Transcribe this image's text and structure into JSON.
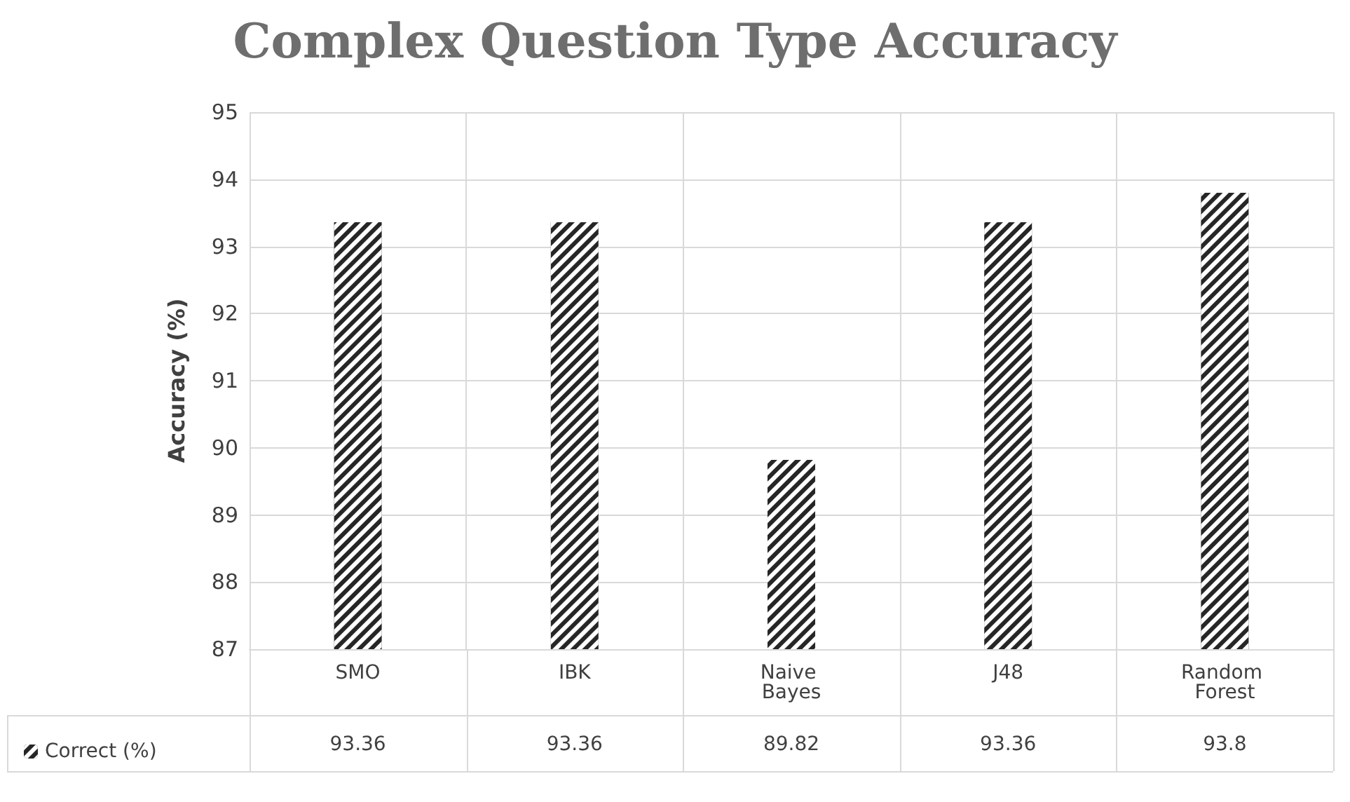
{
  "chart_data": {
    "type": "bar",
    "title": "Complex Question Type Accuracy",
    "ylabel": "Accuracy (%)",
    "categories": [
      "SMO",
      "IBK",
      "Naive Bayes",
      "J48",
      "Random Forest"
    ],
    "series": [
      {
        "name": "Correct (%)",
        "color": "#262626",
        "values": [
          93.36,
          93.36,
          89.82,
          93.36,
          93.8
        ]
      }
    ],
    "ylim": [
      87,
      95
    ],
    "yticks": [
      87,
      88,
      89,
      90,
      91,
      92,
      93,
      94,
      95
    ],
    "grid": true,
    "legend": "bottom left",
    "data_labels": true
  }
}
